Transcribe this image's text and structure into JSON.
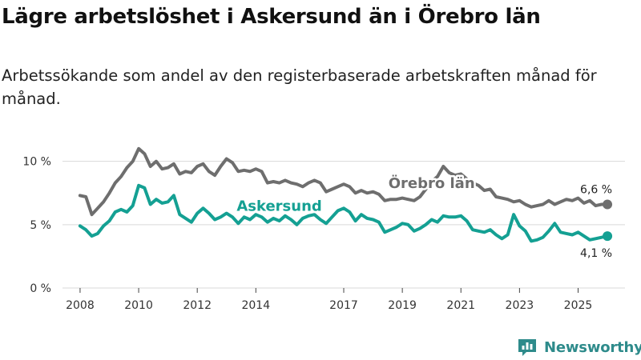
{
  "title": "Lägre arbetslöshet i Askersund än i Örebro län",
  "subtitle": "Arbetssökande som andel av den registerbaserade arbetskraften månad för månad.",
  "brand": {
    "name": "Newsworthy",
    "logo_icon": "bar-chart-logo-icon"
  },
  "colors": {
    "askersund": "#14a093",
    "orebro": "#6e6e6e",
    "grid": "#d9d9d9",
    "brand": "#2e8b8b"
  },
  "chart_data": {
    "type": "line",
    "title": "Lägre arbetslöshet i Askersund än i Örebro län",
    "xlabel": "",
    "ylabel": "",
    "xlim": [
      2007.4,
      2026.6
    ],
    "ylim": [
      0,
      12
    ],
    "grid": true,
    "legend": "inline labels",
    "x_ticks": [
      2008,
      2010,
      2012,
      2014,
      2017,
      2019,
      2021,
      2023,
      2025
    ],
    "y_ticks": [
      {
        "value": 0,
        "label": "0 %"
      },
      {
        "value": 5,
        "label": "5 %"
      },
      {
        "value": 10,
        "label": "10 %"
      }
    ],
    "series": [
      {
        "name": "Örebro län",
        "color": "#6e6e6e",
        "end_label": "6,6 %",
        "points": [
          [
            2008.0,
            7.3
          ],
          [
            2008.2,
            7.2
          ],
          [
            2008.4,
            5.8
          ],
          [
            2008.6,
            6.3
          ],
          [
            2008.8,
            6.8
          ],
          [
            2009.0,
            7.5
          ],
          [
            2009.2,
            8.3
          ],
          [
            2009.4,
            8.8
          ],
          [
            2009.6,
            9.5
          ],
          [
            2009.8,
            10.0
          ],
          [
            2010.0,
            11.0
          ],
          [
            2010.2,
            10.6
          ],
          [
            2010.4,
            9.6
          ],
          [
            2010.6,
            10.0
          ],
          [
            2010.8,
            9.4
          ],
          [
            2011.0,
            9.5
          ],
          [
            2011.2,
            9.8
          ],
          [
            2011.4,
            9.0
          ],
          [
            2011.6,
            9.2
          ],
          [
            2011.8,
            9.1
          ],
          [
            2012.0,
            9.6
          ],
          [
            2012.2,
            9.8
          ],
          [
            2012.4,
            9.2
          ],
          [
            2012.6,
            8.9
          ],
          [
            2012.8,
            9.6
          ],
          [
            2013.0,
            10.2
          ],
          [
            2013.2,
            9.9
          ],
          [
            2013.4,
            9.2
          ],
          [
            2013.6,
            9.3
          ],
          [
            2013.8,
            9.2
          ],
          [
            2014.0,
            9.4
          ],
          [
            2014.2,
            9.2
          ],
          [
            2014.4,
            8.3
          ],
          [
            2014.6,
            8.4
          ],
          [
            2014.8,
            8.3
          ],
          [
            2015.0,
            8.5
          ],
          [
            2015.2,
            8.3
          ],
          [
            2015.4,
            8.2
          ],
          [
            2015.6,
            8.0
          ],
          [
            2015.8,
            8.3
          ],
          [
            2016.0,
            8.5
          ],
          [
            2016.2,
            8.3
          ],
          [
            2016.4,
            7.6
          ],
          [
            2016.6,
            7.8
          ],
          [
            2016.8,
            8.0
          ],
          [
            2017.0,
            8.2
          ],
          [
            2017.2,
            8.0
          ],
          [
            2017.4,
            7.5
          ],
          [
            2017.6,
            7.7
          ],
          [
            2017.8,
            7.5
          ],
          [
            2018.0,
            7.6
          ],
          [
            2018.2,
            7.4
          ],
          [
            2018.4,
            6.9
          ],
          [
            2018.6,
            7.0
          ],
          [
            2018.8,
            7.0
          ],
          [
            2019.0,
            7.1
          ],
          [
            2019.2,
            7.0
          ],
          [
            2019.4,
            6.9
          ],
          [
            2019.6,
            7.2
          ],
          [
            2019.8,
            7.8
          ],
          [
            2020.0,
            8.4
          ],
          [
            2020.2,
            8.8
          ],
          [
            2020.4,
            9.6
          ],
          [
            2020.6,
            9.1
          ],
          [
            2020.8,
            8.9
          ],
          [
            2021.0,
            9.0
          ],
          [
            2021.2,
            8.6
          ],
          [
            2021.4,
            8.3
          ],
          [
            2021.6,
            8.1
          ],
          [
            2021.8,
            7.7
          ],
          [
            2022.0,
            7.8
          ],
          [
            2022.2,
            7.2
          ],
          [
            2022.4,
            7.1
          ],
          [
            2022.6,
            7.0
          ],
          [
            2022.8,
            6.8
          ],
          [
            2023.0,
            6.9
          ],
          [
            2023.2,
            6.6
          ],
          [
            2023.4,
            6.4
          ],
          [
            2023.6,
            6.5
          ],
          [
            2023.8,
            6.6
          ],
          [
            2024.0,
            6.9
          ],
          [
            2024.2,
            6.6
          ],
          [
            2024.4,
            6.8
          ],
          [
            2024.6,
            7.0
          ],
          [
            2024.8,
            6.9
          ],
          [
            2025.0,
            7.1
          ],
          [
            2025.2,
            6.7
          ],
          [
            2025.4,
            6.9
          ],
          [
            2025.6,
            6.5
          ],
          [
            2025.8,
            6.6
          ],
          [
            2026.0,
            6.6
          ]
        ]
      },
      {
        "name": "Askersund",
        "color": "#14a093",
        "end_label": "4,1 %",
        "points": [
          [
            2008.0,
            4.9
          ],
          [
            2008.2,
            4.6
          ],
          [
            2008.4,
            4.1
          ],
          [
            2008.6,
            4.3
          ],
          [
            2008.8,
            4.9
          ],
          [
            2009.0,
            5.3
          ],
          [
            2009.2,
            6.0
          ],
          [
            2009.4,
            6.2
          ],
          [
            2009.6,
            6.0
          ],
          [
            2009.8,
            6.5
          ],
          [
            2010.0,
            8.1
          ],
          [
            2010.2,
            7.9
          ],
          [
            2010.4,
            6.6
          ],
          [
            2010.6,
            7.0
          ],
          [
            2010.8,
            6.7
          ],
          [
            2011.0,
            6.8
          ],
          [
            2011.2,
            7.3
          ],
          [
            2011.4,
            5.8
          ],
          [
            2011.6,
            5.5
          ],
          [
            2011.8,
            5.2
          ],
          [
            2012.0,
            5.9
          ],
          [
            2012.2,
            6.3
          ],
          [
            2012.4,
            5.9
          ],
          [
            2012.6,
            5.4
          ],
          [
            2012.8,
            5.6
          ],
          [
            2013.0,
            5.9
          ],
          [
            2013.2,
            5.6
          ],
          [
            2013.4,
            5.1
          ],
          [
            2013.6,
            5.6
          ],
          [
            2013.8,
            5.4
          ],
          [
            2014.0,
            5.8
          ],
          [
            2014.2,
            5.6
          ],
          [
            2014.4,
            5.2
          ],
          [
            2014.6,
            5.5
          ],
          [
            2014.8,
            5.3
          ],
          [
            2015.0,
            5.7
          ],
          [
            2015.2,
            5.4
          ],
          [
            2015.4,
            5.0
          ],
          [
            2015.6,
            5.5
          ],
          [
            2015.8,
            5.7
          ],
          [
            2016.0,
            5.8
          ],
          [
            2016.2,
            5.4
          ],
          [
            2016.4,
            5.1
          ],
          [
            2016.6,
            5.6
          ],
          [
            2016.8,
            6.1
          ],
          [
            2017.0,
            6.3
          ],
          [
            2017.2,
            6.0
          ],
          [
            2017.4,
            5.3
          ],
          [
            2017.6,
            5.8
          ],
          [
            2017.8,
            5.5
          ],
          [
            2018.0,
            5.4
          ],
          [
            2018.2,
            5.2
          ],
          [
            2018.4,
            4.4
          ],
          [
            2018.6,
            4.6
          ],
          [
            2018.8,
            4.8
          ],
          [
            2019.0,
            5.1
          ],
          [
            2019.2,
            5.0
          ],
          [
            2019.4,
            4.5
          ],
          [
            2019.6,
            4.7
          ],
          [
            2019.8,
            5.0
          ],
          [
            2020.0,
            5.4
          ],
          [
            2020.2,
            5.2
          ],
          [
            2020.4,
            5.7
          ],
          [
            2020.6,
            5.6
          ],
          [
            2020.8,
            5.6
          ],
          [
            2021.0,
            5.7
          ],
          [
            2021.2,
            5.3
          ],
          [
            2021.4,
            4.6
          ],
          [
            2021.6,
            4.5
          ],
          [
            2021.8,
            4.4
          ],
          [
            2022.0,
            4.6
          ],
          [
            2022.2,
            4.2
          ],
          [
            2022.4,
            3.9
          ],
          [
            2022.6,
            4.2
          ],
          [
            2022.8,
            5.8
          ],
          [
            2023.0,
            4.9
          ],
          [
            2023.2,
            4.5
          ],
          [
            2023.4,
            3.7
          ],
          [
            2023.6,
            3.8
          ],
          [
            2023.8,
            4.0
          ],
          [
            2024.0,
            4.5
          ],
          [
            2024.2,
            5.1
          ],
          [
            2024.4,
            4.4
          ],
          [
            2024.6,
            4.3
          ],
          [
            2024.8,
            4.2
          ],
          [
            2025.0,
            4.4
          ],
          [
            2025.2,
            4.1
          ],
          [
            2025.4,
            3.8
          ],
          [
            2025.6,
            3.9
          ],
          [
            2025.8,
            4.0
          ],
          [
            2026.0,
            4.1
          ]
        ]
      }
    ],
    "annotations": [
      {
        "text": "Örebro län",
        "series": "Örebro län",
        "x": 2020.0,
        "y": 7.9
      },
      {
        "text": "Askersund",
        "series": "Askersund",
        "x": 2014.8,
        "y": 6.1
      }
    ]
  }
}
